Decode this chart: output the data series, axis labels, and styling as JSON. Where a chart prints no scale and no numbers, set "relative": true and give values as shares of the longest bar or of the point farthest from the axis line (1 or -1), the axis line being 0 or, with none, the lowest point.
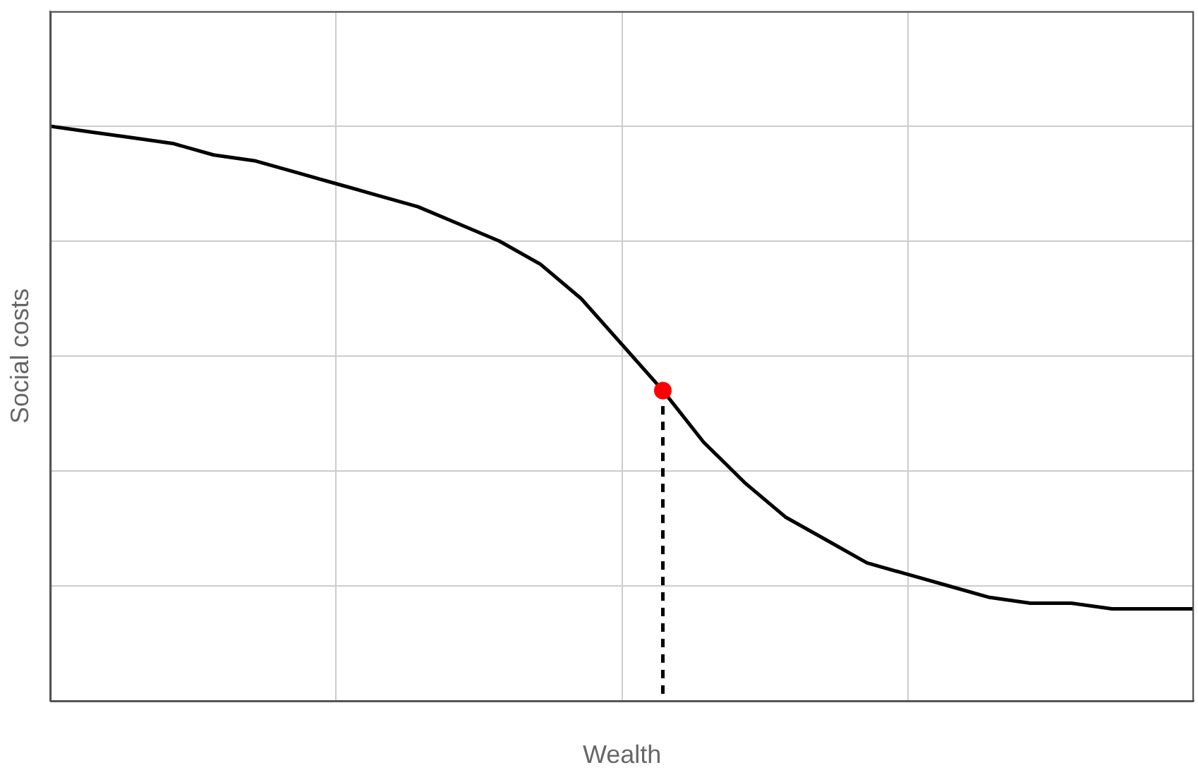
{
  "chart_data": {
    "type": "line",
    "xlabel": "Wealth",
    "ylabel": "Social costs",
    "relative": true,
    "grid": true,
    "legend": false,
    "categories": [
      null,
      null,
      null,
      null,
      null,
      null,
      null,
      null,
      null,
      null,
      null,
      null,
      null,
      null,
      null,
      null,
      null,
      null,
      null,
      null,
      null,
      null,
      null,
      null,
      null,
      null,
      null,
      null,
      null
    ],
    "series": [
      {
        "color": "#000000",
        "line_style": "solid",
        "marker": "none",
        "values": [
          1.0,
          0.99,
          0.98,
          0.97,
          0.95,
          0.94,
          0.92,
          0.9,
          0.88,
          0.86,
          0.83,
          0.8,
          0.76,
          0.7,
          0.62,
          0.54,
          0.45,
          0.38,
          0.32,
          0.28,
          0.24,
          0.22,
          0.2,
          0.18,
          0.17,
          0.17,
          0.16,
          0.16,
          0.16
        ],
        "colors": [
          "#000000",
          "#000000",
          "#000000",
          "#000000",
          "#000000",
          "#000000",
          "#000000",
          "#000000",
          "#000000",
          "#000000",
          "#000000",
          "#000000",
          "#000000",
          "#000000",
          "#000000",
          "#ff0000",
          "#000000",
          "#000000",
          "#000000",
          "#000000",
          "#000000",
          "#000000",
          "#000000",
          "#000000",
          "#000000",
          "#000000",
          "#000000",
          "#000000",
          "#000000"
        ]
      }
    ]
  }
}
